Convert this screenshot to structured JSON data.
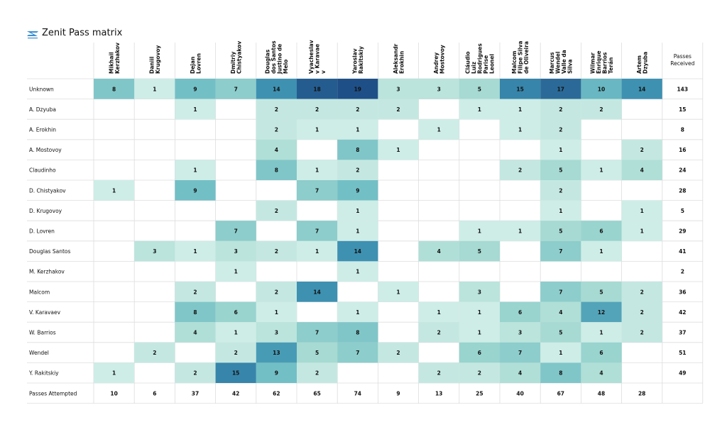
{
  "title": "Zenit Pass matrix",
  "chart_data": {
    "type": "heatmap",
    "title": "Zenit Pass matrix",
    "columns": [
      "Mikhail Kerzhakov",
      "Daniil Krugovoy",
      "Dejan Lovren",
      "Dmitriy Chistyakov",
      "Douglas dos Santos Justino de Melo",
      "Vyacheslav Karavaev",
      "Yaroslav Rakitskiy",
      "Aleksandr Erokhin",
      "Andrey Mostovoy",
      "Cláudio Luiz Rodrigues Parise Leonel",
      "Malcom Filipe Silva de Oliveira",
      "Marcus Wendel Valle da Silva",
      "Wilmar Enrique Barrios Terán",
      "Artem Dzyuba"
    ],
    "column_label_lines": [
      [
        "Mikhail",
        "Kerzhakov"
      ],
      [
        "Daniil",
        "Krugovoy"
      ],
      [
        "Dejan",
        "Lovren"
      ],
      [
        "Dmitriy",
        "Chistyakov"
      ],
      [
        "Douglas",
        "dos Santos",
        "Justino de",
        "Melo"
      ],
      [
        "Vyacheslav",
        "v Karavae",
        "v"
      ],
      [
        "Yaroslav",
        "Rakitskiy"
      ],
      [
        "Aleksandr",
        "Erokhin"
      ],
      [
        "Andrey",
        "Mostovoy"
      ],
      [
        "Cláudio",
        "Luiz",
        "Rodrigues",
        "Parise",
        "Leonel"
      ],
      [
        "Malcom",
        "Filipe Silva",
        "de Oliveira"
      ],
      [
        "Marcus",
        "Wendel",
        "Valle da",
        "Silva"
      ],
      [
        "Wilmar",
        "Enrique",
        "Barrios",
        "Terán"
      ],
      [
        "Artem",
        "Dzyuba"
      ]
    ],
    "rows": [
      "Unknown",
      "A. Dzyuba",
      "A. Erokhin",
      "A. Mostovoy",
      "Claudinho",
      "D. Chistyakov",
      "D. Krugovoy",
      "D. Lovren",
      "Douglas Santos",
      "M. Kerzhakov",
      "Malcom",
      "V. Karavaev",
      "W. Barrios",
      "Wendel",
      "Y. Rakitskiy"
    ],
    "values": [
      [
        8,
        1,
        9,
        7,
        14,
        18,
        19,
        3,
        3,
        5,
        15,
        17,
        10,
        14
      ],
      [
        null,
        null,
        1,
        null,
        2,
        2,
        2,
        2,
        null,
        1,
        1,
        2,
        2,
        null
      ],
      [
        null,
        null,
        null,
        null,
        2,
        1,
        1,
        null,
        1,
        null,
        1,
        2,
        null,
        null
      ],
      [
        null,
        null,
        null,
        null,
        4,
        null,
        8,
        1,
        null,
        null,
        null,
        1,
        null,
        2
      ],
      [
        null,
        null,
        1,
        null,
        8,
        1,
        2,
        null,
        null,
        null,
        2,
        5,
        1,
        4
      ],
      [
        1,
        null,
        9,
        null,
        null,
        7,
        9,
        null,
        null,
        null,
        null,
        2,
        null,
        null
      ],
      [
        null,
        null,
        null,
        null,
        2,
        null,
        1,
        null,
        null,
        null,
        null,
        1,
        null,
        1
      ],
      [
        null,
        null,
        null,
        7,
        null,
        7,
        1,
        null,
        null,
        1,
        1,
        5,
        6,
        1
      ],
      [
        null,
        3,
        1,
        3,
        2,
        1,
        14,
        null,
        4,
        5,
        null,
        7,
        1,
        null
      ],
      [
        null,
        null,
        null,
        1,
        null,
        null,
        1,
        null,
        null,
        null,
        null,
        null,
        null,
        null
      ],
      [
        null,
        null,
        2,
        null,
        2,
        14,
        null,
        1,
        null,
        3,
        null,
        7,
        5,
        2
      ],
      [
        null,
        null,
        8,
        6,
        1,
        null,
        1,
        null,
        1,
        1,
        6,
        4,
        12,
        2
      ],
      [
        null,
        null,
        4,
        1,
        3,
        7,
        8,
        null,
        2,
        1,
        3,
        5,
        1,
        2
      ],
      [
        null,
        2,
        null,
        2,
        13,
        5,
        7,
        2,
        null,
        6,
        7,
        1,
        6,
        null
      ],
      [
        1,
        null,
        2,
        15,
        9,
        2,
        null,
        null,
        2,
        2,
        4,
        8,
        4,
        null
      ]
    ],
    "passes_received_label": [
      "Passes",
      "Received"
    ],
    "passes_received": [
      143,
      15,
      8,
      16,
      24,
      28,
      5,
      29,
      41,
      2,
      36,
      42,
      37,
      51,
      49
    ],
    "passes_attempted_label": "Passes Attempted",
    "passes_attempted": [
      10,
      6,
      37,
      42,
      62,
      65,
      74,
      9,
      13,
      25,
      40,
      67,
      48,
      28
    ],
    "vmax": 19,
    "color_scale": [
      "#d8f1ec",
      "#a9dcd3",
      "#6dbcc4",
      "#3b8fb0",
      "#1f4f87"
    ],
    "grid": true,
    "legend": "none"
  }
}
